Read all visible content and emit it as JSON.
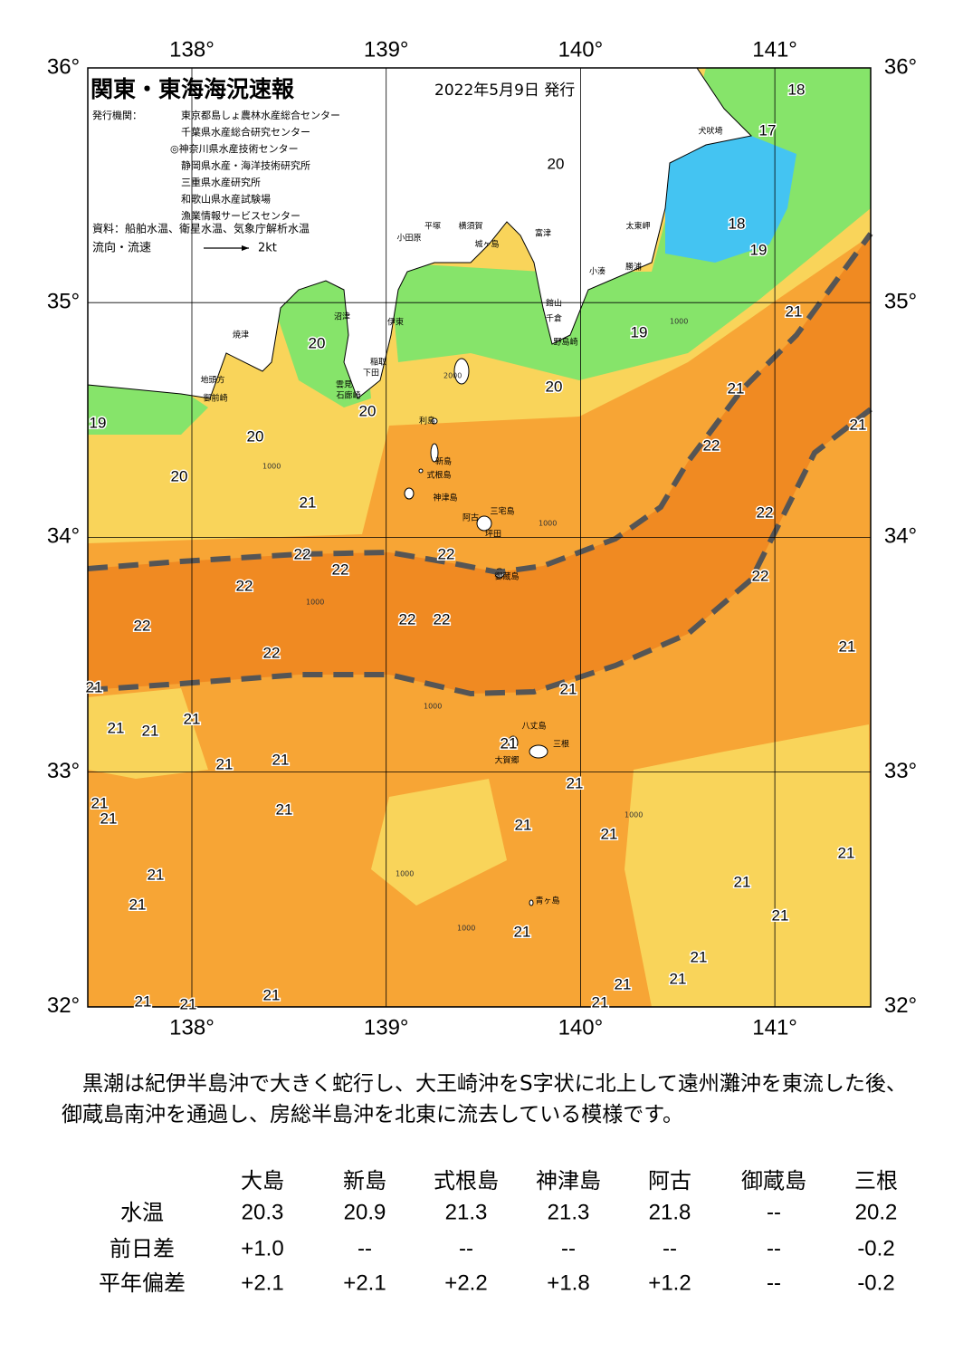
{
  "header": {
    "title": "関東・東海海況速報",
    "date": "2022年5月9日 発行",
    "issuer_label": "発行機関：",
    "issuers": [
      "東京都島しょ農林水産総合センター",
      "千葉県水産総合研究センター",
      "◎神奈川県水産技術センター",
      "静岡県水産・海洋技術研究所",
      "三重県水産研究所",
      "和歌山県水産試験場",
      "漁業情報サービスセンター"
    ],
    "source": "資料：船舶水温、衛星水温、気象庁解析水温",
    "flow_legend": "流向・流速",
    "flow_scale": "2kt"
  },
  "map": {
    "lon_ticks": [
      {
        "value": 138,
        "label": "138°"
      },
      {
        "value": 139,
        "label": "139°"
      },
      {
        "value": 140,
        "label": "140°"
      },
      {
        "value": 141,
        "label": "141°"
      }
    ],
    "lat_ticks": [
      {
        "value": 36,
        "label": "36°"
      },
      {
        "value": 35,
        "label": "35°"
      },
      {
        "value": 34,
        "label": "34°"
      },
      {
        "value": 33,
        "label": "33°"
      },
      {
        "value": 32,
        "label": "32°"
      }
    ],
    "sst_labels": [
      18,
      17,
      20,
      18,
      19,
      21,
      19,
      20,
      20,
      20,
      21,
      21,
      19,
      20,
      22,
      20,
      21,
      22,
      22,
      22,
      22,
      22,
      22,
      22,
      22,
      22,
      21,
      22,
      21,
      21,
      21,
      21,
      21,
      21,
      21,
      21,
      21,
      21,
      21,
      21,
      21,
      21,
      21,
      21,
      21,
      21,
      21,
      21,
      21,
      21,
      21,
      21,
      21,
      21,
      21
    ],
    "depth_labels": [
      2000,
      1000,
      1000,
      1000,
      1000,
      1000,
      1000,
      1000,
      1000
    ],
    "places": [
      "犬吠埼",
      "太東岬",
      "勝浦",
      "小湊",
      "富津",
      "館山",
      "千倉",
      "野島崎",
      "平塚",
      "横須賀",
      "城ヶ島",
      "小田原",
      "伊東",
      "稲取",
      "下田",
      "雲見",
      "石廊崎",
      "沼津",
      "焼津",
      "地頭方",
      "御前崎",
      "利島",
      "新島",
      "式根島",
      "神津島",
      "三宅島",
      "阿古",
      "坪田",
      "御蔵島",
      "八丈島",
      "大賀郷",
      "三根",
      "青ヶ島"
    ]
  },
  "description": "　黒潮は紀伊半島沖で大きく蛇行し、大王崎沖をS字状に北上して遠州灘沖を東流した後、御蔵島南沖を通過し、房総半島沖を北東に流去している模様です。",
  "table": {
    "columns": [
      "大島",
      "新島",
      "式根島",
      "神津島",
      "阿古",
      "御蔵島",
      "三根"
    ],
    "rows": [
      {
        "label": "水温",
        "cells": [
          "20.3",
          "20.9",
          "21.3",
          "21.3",
          "21.8",
          "--",
          "20.2"
        ]
      },
      {
        "label": "前日差",
        "cells": [
          "+1.0",
          "--",
          "--",
          "--",
          "--",
          "--",
          "-0.2"
        ]
      },
      {
        "label": "平年偏差",
        "cells": [
          "+2.1",
          "+2.1",
          "+2.2",
          "+1.8",
          "+1.2",
          "--",
          "-0.2"
        ]
      }
    ]
  }
}
